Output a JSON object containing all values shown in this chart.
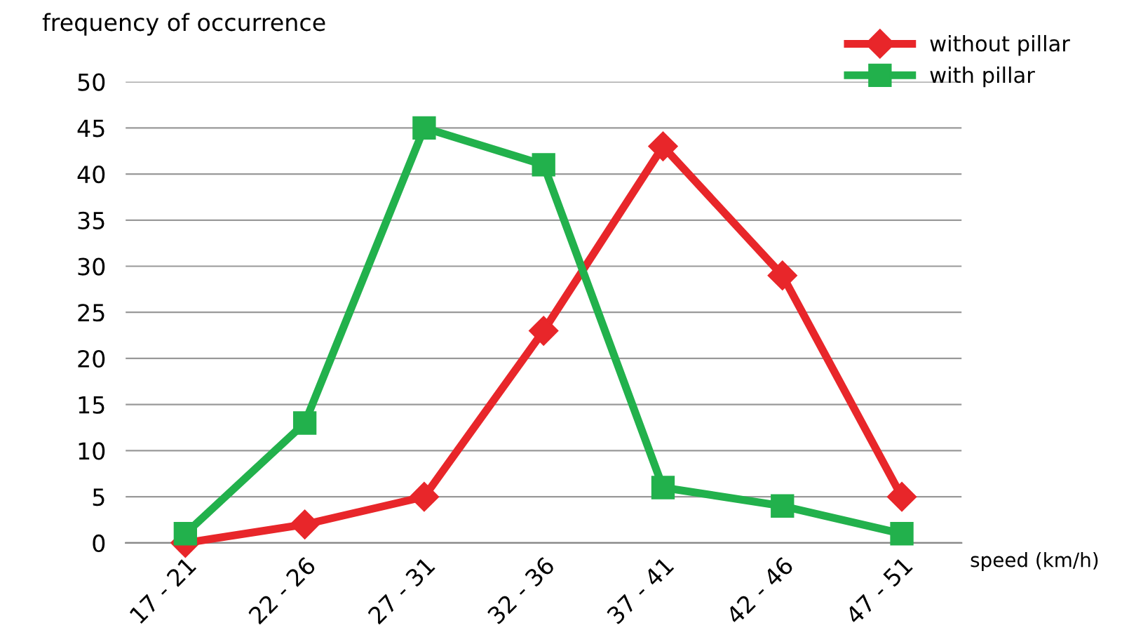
{
  "chart_data": {
    "type": "line",
    "ylabel": "frequency of occurrence",
    "xlabel": "speed (km/h)",
    "categories": [
      "17 - 21",
      "22 - 26",
      "27 - 31",
      "32 - 36",
      "37 - 41",
      "42 - 46",
      "47 - 51"
    ],
    "series": [
      {
        "name": "without pillar",
        "color": "#e8262a",
        "marker": "diamond",
        "values": [
          0,
          2,
          5,
          23,
          43,
          29,
          5
        ]
      },
      {
        "name": "with pillar",
        "color": "#22b14c",
        "marker": "square",
        "values": [
          1,
          13,
          45,
          41,
          6,
          4,
          1
        ]
      }
    ],
    "ylim": [
      0,
      50
    ],
    "yticks": [
      0,
      5,
      10,
      15,
      20,
      25,
      30,
      35,
      40,
      45,
      50
    ],
    "grid": "y",
    "legend": "top right",
    "line_style": "solid"
  }
}
